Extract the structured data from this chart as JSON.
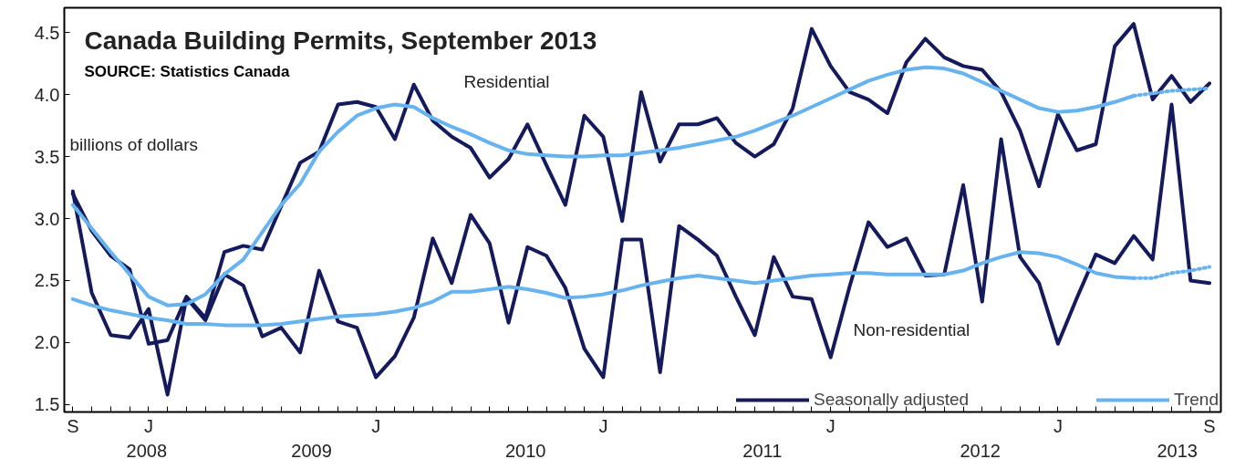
{
  "chart_data": {
    "type": "line",
    "title": "Canada Building Permits, September 2013",
    "ylabel": "billions of dollars",
    "annotations": [
      "SOURCE: Statistics Canada",
      "Residential",
      "Non-residential",
      "2008",
      "2009",
      "2010",
      "2011",
      "2012",
      "2013"
    ],
    "categories": [
      "S",
      null,
      null,
      null,
      "J",
      null,
      null,
      null,
      null,
      null,
      null,
      null,
      null,
      null,
      null,
      null,
      "J",
      null,
      null,
      null,
      null,
      null,
      null,
      null,
      null,
      null,
      null,
      null,
      "J",
      null,
      null,
      null,
      null,
      null,
      null,
      null,
      null,
      null,
      null,
      null,
      "J",
      null,
      null,
      null,
      null,
      null,
      null,
      null,
      null,
      null,
      null,
      null,
      "J",
      null,
      null,
      null,
      null,
      null,
      null,
      null,
      "S"
    ],
    "series": [
      {
        "name": "Seasonally adjusted",
        "color": "#151a5c",
        "values": [
          3.2,
          2.9,
          2.7,
          2.59,
          1.99,
          2.02,
          2.37,
          2.2,
          2.73,
          2.78,
          2.75,
          3.1,
          3.45,
          3.54,
          3.92,
          3.94,
          3.9,
          3.64,
          4.08,
          3.79,
          3.66,
          3.57,
          3.33,
          3.48,
          3.76,
          3.43,
          3.11,
          3.83,
          3.66,
          2.98,
          4.02,
          3.46,
          3.76,
          3.76,
          3.81,
          3.61,
          3.5,
          3.6,
          3.89,
          4.53,
          4.23,
          4.02,
          3.96,
          3.85,
          4.26,
          4.45,
          4.3,
          4.23,
          4.2,
          4.02,
          3.71,
          3.26,
          3.84,
          3.55,
          3.6,
          4.39,
          4.57,
          3.96,
          4.15,
          3.94,
          4.09
        ]
      },
      {
        "color": "#151a5c",
        "values": [
          3.22,
          2.4,
          2.06,
          2.04,
          2.27,
          1.58,
          2.36,
          2.18,
          2.55,
          2.46,
          2.05,
          2.12,
          1.92,
          2.58,
          2.17,
          2.12,
          1.72,
          1.89,
          2.2,
          2.84,
          2.48,
          3.03,
          2.8,
          2.16,
          2.77,
          2.7,
          2.44,
          1.95,
          1.72,
          2.83,
          2.83,
          1.76,
          2.94,
          2.83,
          2.7,
          2.37,
          2.06,
          2.69,
          2.37,
          2.35,
          1.88,
          2.45,
          2.97,
          2.77,
          2.84,
          2.54,
          2.55,
          3.27,
          2.33,
          3.64,
          2.69,
          2.48,
          1.99,
          2.36,
          2.71,
          2.64,
          2.86,
          2.67,
          3.92,
          2.5,
          2.48
        ]
      },
      {
        "name": "Trend",
        "color": "#66b3f0",
        "values": [
          3.11,
          2.92,
          2.73,
          2.55,
          2.37,
          2.3,
          2.31,
          2.39,
          2.55,
          2.67,
          2.89,
          3.11,
          3.28,
          3.54,
          3.7,
          3.83,
          3.89,
          3.92,
          3.9,
          3.81,
          3.74,
          3.68,
          3.61,
          3.55,
          3.52,
          3.51,
          3.5,
          3.5,
          3.51,
          3.51,
          3.53,
          3.55,
          3.57,
          3.6,
          3.63,
          3.66,
          3.71,
          3.77,
          3.83,
          3.9,
          3.97,
          4.04,
          4.11,
          4.16,
          4.2,
          4.22,
          4.21,
          4.17,
          4.1,
          4.03,
          3.96,
          3.89,
          3.86,
          3.87,
          3.9,
          3.94,
          3.99,
          null,
          null,
          null,
          null
        ]
      },
      {
        "color": "#66b3f0",
        "line_style": "dotted",
        "values": [
          null,
          null,
          null,
          null,
          null,
          null,
          null,
          null,
          null,
          null,
          null,
          null,
          null,
          null,
          null,
          null,
          null,
          null,
          null,
          null,
          null,
          null,
          null,
          null,
          null,
          null,
          null,
          null,
          null,
          null,
          null,
          null,
          null,
          null,
          null,
          null,
          null,
          null,
          null,
          null,
          null,
          null,
          null,
          null,
          null,
          null,
          null,
          null,
          null,
          null,
          null,
          null,
          null,
          null,
          null,
          null,
          3.99,
          4.01,
          4.03,
          4.04,
          4.05
        ]
      },
      {
        "color": "#66b3f0",
        "values": [
          2.35,
          2.3,
          2.26,
          2.23,
          2.2,
          2.18,
          2.15,
          2.15,
          2.14,
          2.14,
          2.14,
          2.15,
          2.17,
          2.19,
          2.21,
          2.22,
          2.23,
          2.25,
          2.28,
          2.33,
          2.41,
          2.41,
          2.43,
          2.45,
          2.43,
          2.4,
          2.36,
          2.37,
          2.39,
          2.42,
          2.46,
          2.49,
          2.52,
          2.54,
          2.52,
          2.5,
          2.48,
          2.5,
          2.52,
          2.54,
          2.55,
          2.56,
          2.56,
          2.55,
          2.55,
          2.55,
          2.55,
          2.58,
          2.64,
          2.69,
          2.73,
          2.72,
          2.69,
          2.63,
          2.56,
          2.53,
          2.52,
          null,
          null,
          null,
          null
        ]
      },
      {
        "color": "#66b3f0",
        "line_style": "dotted",
        "values": [
          null,
          null,
          null,
          null,
          null,
          null,
          null,
          null,
          null,
          null,
          null,
          null,
          null,
          null,
          null,
          null,
          null,
          null,
          null,
          null,
          null,
          null,
          null,
          null,
          null,
          null,
          null,
          null,
          null,
          null,
          null,
          null,
          null,
          null,
          null,
          null,
          null,
          null,
          null,
          null,
          null,
          null,
          null,
          null,
          null,
          null,
          null,
          null,
          null,
          null,
          null,
          null,
          null,
          null,
          null,
          null,
          2.52,
          2.52,
          2.56,
          2.58,
          2.61
        ]
      }
    ],
    "ylim": [
      1.44,
      4.7
    ],
    "yticks": [
      1.5,
      {
        "value": 2,
        "label": "2.0"
      },
      2.5,
      {
        "value": 3,
        "label": "3.0"
      },
      3.5,
      {
        "value": 4,
        "label": "4.0"
      },
      4.5
    ],
    "grid": false,
    "legend": "bottom right",
    "marker": "none",
    "line_style": "solid"
  }
}
